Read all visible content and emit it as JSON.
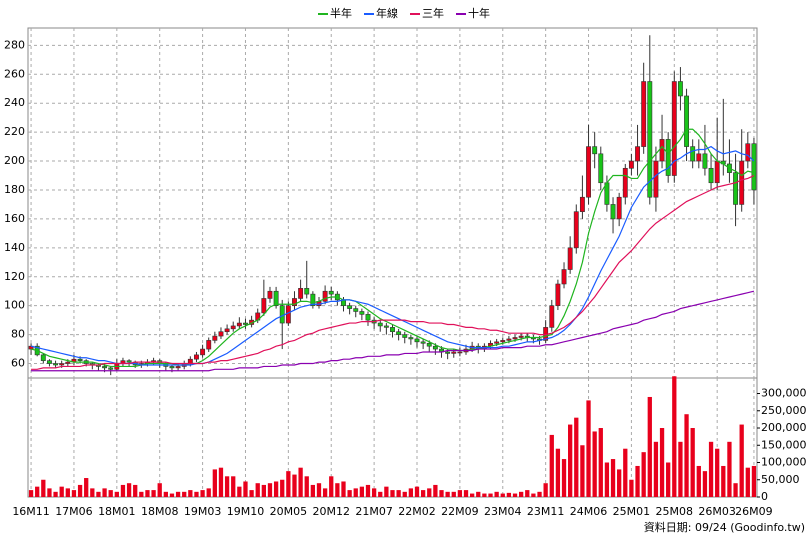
{
  "chart_data": {
    "type": "candlestick",
    "categories": [
      "16M11",
      null,
      null,
      null,
      null,
      null,
      null,
      "17M06",
      null,
      null,
      null,
      null,
      null,
      null,
      "18M01",
      null,
      null,
      null,
      null,
      null,
      null,
      "18M08",
      null,
      null,
      null,
      null,
      null,
      null,
      "19M03",
      null,
      null,
      null,
      null,
      null,
      null,
      "19M10",
      null,
      null,
      null,
      null,
      null,
      null,
      "20M05",
      null,
      null,
      null,
      null,
      null,
      null,
      "20M12",
      null,
      null,
      null,
      null,
      null,
      null,
      "21M07",
      null,
      null,
      null,
      null,
      null,
      null,
      "22M02",
      null,
      null,
      null,
      null,
      null,
      null,
      "22M09",
      null,
      null,
      null,
      null,
      null,
      null,
      "23M04",
      null,
      null,
      null,
      null,
      null,
      null,
      "23M11",
      null,
      null,
      null,
      null,
      null,
      null,
      "24M06",
      null,
      null,
      null,
      null,
      null,
      null,
      "25M01",
      null,
      null,
      null,
      null,
      null,
      null,
      "25M08",
      null,
      null,
      null,
      null,
      null,
      null,
      "26M03",
      null,
      null,
      null,
      null,
      null,
      "26M09"
    ],
    "open": [
      70,
      72,
      66,
      62,
      60,
      59,
      60,
      61,
      63,
      62,
      60,
      59,
      58,
      57,
      56,
      60,
      62,
      61,
      59,
      60,
      61,
      62,
      60,
      58,
      57,
      58,
      60,
      63,
      66,
      70,
      76,
      79,
      82,
      84,
      86,
      88,
      87,
      90,
      95,
      105,
      110,
      100,
      88,
      100,
      105,
      112,
      108,
      100,
      103,
      110,
      108,
      104,
      100,
      98,
      96,
      94,
      90,
      88,
      86,
      85,
      82,
      80,
      78,
      77,
      75,
      74,
      72,
      70,
      68,
      67,
      68,
      68,
      70,
      72,
      70,
      72,
      74,
      75,
      76,
      77,
      78,
      79,
      78,
      77,
      76,
      85,
      100,
      115,
      125,
      140,
      165,
      175,
      210,
      205,
      185,
      170,
      160,
      175,
      195,
      200,
      210,
      255,
      175,
      200,
      215,
      190,
      255,
      245,
      210,
      200,
      205,
      195,
      185,
      200,
      198,
      192,
      170,
      200,
      212
    ],
    "high": [
      74,
      74,
      67,
      63,
      62,
      62,
      63,
      66,
      65,
      63,
      61,
      60,
      60,
      58,
      63,
      64,
      63,
      62,
      62,
      63,
      64,
      63,
      61,
      59,
      60,
      62,
      65,
      68,
      73,
      78,
      82,
      85,
      87,
      89,
      92,
      91,
      93,
      98,
      118,
      113,
      113,
      104,
      103,
      110,
      118,
      131,
      110,
      106,
      114,
      113,
      110,
      106,
      102,
      100,
      98,
      96,
      92,
      90,
      88,
      87,
      84,
      82,
      80,
      79,
      77,
      76,
      74,
      72,
      70,
      70,
      71,
      73,
      75,
      74,
      74,
      76,
      77,
      78,
      79,
      80,
      81,
      81,
      80,
      79,
      90,
      104,
      118,
      130,
      148,
      170,
      190,
      225,
      220,
      210,
      190,
      175,
      178,
      198,
      205,
      225,
      268,
      287,
      210,
      232,
      220,
      262,
      265,
      250,
      215,
      215,
      225,
      205,
      230,
      243,
      215,
      205,
      222,
      220,
      216
    ],
    "low": [
      66,
      65,
      60,
      58,
      57,
      57,
      58,
      59,
      60,
      58,
      56,
      55,
      54,
      52,
      55,
      58,
      58,
      57,
      57,
      58,
      59,
      57,
      55,
      54,
      55,
      56,
      58,
      61,
      64,
      68,
      74,
      77,
      80,
      82,
      84,
      84,
      85,
      88,
      93,
      102,
      98,
      70,
      86,
      97,
      103,
      105,
      98,
      98,
      101,
      104,
      100,
      96,
      94,
      92,
      90,
      86,
      84,
      82,
      80,
      78,
      76,
      74,
      73,
      71,
      70,
      68,
      66,
      64,
      63,
      64,
      65,
      66,
      68,
      67,
      68,
      70,
      72,
      73,
      74,
      75,
      76,
      75,
      74,
      73,
      74,
      82,
      97,
      112,
      122,
      136,
      160,
      170,
      195,
      180,
      165,
      150,
      155,
      170,
      190,
      190,
      205,
      170,
      165,
      195,
      185,
      185,
      235,
      200,
      195,
      195,
      190,
      180,
      180,
      190,
      185,
      155,
      165,
      195,
      170
    ],
    "close": [
      72,
      66,
      62,
      60,
      59,
      60,
      61,
      63,
      62,
      60,
      59,
      58,
      57,
      56,
      60,
      62,
      61,
      59,
      60,
      61,
      62,
      60,
      58,
      57,
      58,
      60,
      63,
      66,
      70,
      76,
      79,
      82,
      84,
      86,
      88,
      87,
      90,
      95,
      105,
      110,
      100,
      88,
      100,
      105,
      112,
      108,
      100,
      103,
      110,
      108,
      104,
      100,
      98,
      96,
      94,
      90,
      88,
      86,
      85,
      82,
      80,
      78,
      77,
      75,
      74,
      72,
      70,
      68,
      67,
      68,
      68,
      70,
      72,
      70,
      72,
      74,
      75,
      76,
      77,
      78,
      79,
      78,
      77,
      76,
      85,
      100,
      115,
      125,
      140,
      165,
      175,
      210,
      205,
      185,
      170,
      160,
      175,
      195,
      200,
      210,
      255,
      175,
      200,
      215,
      190,
      255,
      245,
      210,
      200,
      205,
      195,
      185,
      200,
      198,
      192,
      170,
      200,
      212,
      180
    ],
    "up_color": "#e8001c",
    "down_color": "#19c419",
    "series": [
      {
        "name": "半年",
        "color": "#1fb51f",
        "values": [
          70,
          69,
          67,
          65,
          64,
          63,
          62,
          61,
          61,
          61,
          61,
          60,
          59,
          58,
          58,
          58,
          58,
          58,
          59,
          60,
          60,
          60,
          60,
          60,
          59,
          59,
          60,
          60,
          62,
          65,
          69,
          73,
          77,
          81,
          84,
          86,
          88,
          90,
          94,
          99,
          101,
          101,
          101,
          101,
          103,
          103,
          102,
          103,
          105,
          106,
          106,
          104,
          104,
          103,
          100,
          97,
          94,
          91,
          89,
          87,
          85,
          83,
          81,
          79,
          77,
          75,
          73,
          71,
          70,
          70,
          69,
          69,
          70,
          70,
          71,
          72,
          73,
          74,
          75,
          76,
          77,
          78,
          78,
          78,
          79,
          80,
          85,
          93,
          103,
          115,
          130,
          150,
          165,
          178,
          185,
          190,
          190,
          190,
          188,
          188,
          195,
          200,
          205,
          210,
          205,
          210,
          215,
          222,
          222,
          218,
          212,
          205,
          200,
          198,
          195,
          193,
          190,
          193,
          192
        ]
      },
      {
        "name": "年線",
        "color": "#1a5cff",
        "values": [
          72,
          71,
          70,
          69,
          68,
          67,
          66,
          65,
          64,
          64,
          63,
          62,
          62,
          61,
          60,
          60,
          60,
          60,
          59,
          59,
          59,
          59,
          59,
          59,
          59,
          59,
          59,
          60,
          60,
          61,
          63,
          65,
          67,
          70,
          73,
          76,
          79,
          82,
          85,
          88,
          91,
          93,
          95,
          97,
          99,
          100,
          101,
          101,
          102,
          103,
          103,
          104,
          104,
          103,
          102,
          101,
          99,
          97,
          95,
          93,
          91,
          89,
          87,
          85,
          83,
          81,
          79,
          77,
          75,
          74,
          73,
          72,
          71,
          71,
          71,
          71,
          71,
          72,
          72,
          73,
          74,
          75,
          75,
          76,
          77,
          78,
          80,
          83,
          87,
          92,
          98,
          106,
          115,
          124,
          132,
          140,
          148,
          158,
          168,
          175,
          182,
          186,
          190,
          193,
          195,
          200,
          202,
          205,
          207,
          208,
          208,
          210,
          207,
          205,
          206,
          207,
          205,
          204,
          200
        ]
      },
      {
        "name": "三年",
        "color": "#e0105a",
        "values": [
          56,
          56,
          57,
          57,
          57,
          58,
          58,
          58,
          58,
          59,
          59,
          59,
          60,
          60,
          60,
          60,
          60,
          61,
          61,
          61,
          61,
          61,
          61,
          60,
          60,
          60,
          60,
          60,
          60,
          61,
          61,
          62,
          62,
          63,
          64,
          65,
          66,
          67,
          69,
          70,
          72,
          73,
          75,
          76,
          78,
          80,
          81,
          83,
          84,
          85,
          86,
          87,
          88,
          88,
          89,
          89,
          89,
          90,
          90,
          90,
          90,
          90,
          89,
          89,
          89,
          88,
          88,
          88,
          87,
          87,
          86,
          85,
          85,
          84,
          84,
          83,
          83,
          82,
          81,
          81,
          81,
          81,
          81,
          80,
          80,
          81,
          83,
          85,
          88,
          92,
          96,
          101,
          106,
          112,
          118,
          124,
          130,
          134,
          138,
          143,
          148,
          153,
          157,
          160,
          163,
          166,
          169,
          172,
          174,
          176,
          178,
          180,
          182,
          183,
          184,
          185,
          187,
          188,
          190
        ]
      },
      {
        "name": "十年",
        "color": "#8a00b0",
        "values": [
          55,
          55,
          55,
          55,
          55,
          55,
          55,
          55,
          55,
          55,
          55,
          55,
          55,
          55,
          55,
          55,
          55,
          55,
          55,
          55,
          55,
          55,
          55,
          55,
          55,
          55,
          55,
          55,
          55,
          55,
          56,
          56,
          56,
          56,
          57,
          57,
          57,
          57,
          58,
          58,
          58,
          59,
          59,
          59,
          60,
          60,
          60,
          61,
          61,
          62,
          62,
          63,
          63,
          64,
          64,
          65,
          65,
          65,
          66,
          66,
          66,
          67,
          67,
          67,
          68,
          68,
          68,
          68,
          69,
          69,
          69,
          69,
          69,
          70,
          70,
          70,
          70,
          71,
          71,
          71,
          71,
          72,
          72,
          72,
          73,
          73,
          74,
          75,
          76,
          77,
          78,
          79,
          80,
          81,
          82,
          84,
          85,
          86,
          87,
          88,
          90,
          91,
          92,
          94,
          95,
          96,
          98,
          99,
          100,
          101,
          102,
          103,
          104,
          105,
          106,
          107,
          108,
          109,
          110
        ]
      }
    ],
    "volume": {
      "color": "#e8001c",
      "axis": "y2",
      "values": [
        20000,
        30000,
        50000,
        25000,
        15000,
        30000,
        25000,
        20000,
        35000,
        55000,
        25000,
        15000,
        25000,
        20000,
        15000,
        35000,
        40000,
        35000,
        15000,
        20000,
        20000,
        40000,
        15000,
        10000,
        15000,
        15000,
        20000,
        15000,
        20000,
        25000,
        80000,
        85000,
        60000,
        60000,
        30000,
        45000,
        20000,
        40000,
        35000,
        40000,
        45000,
        50000,
        75000,
        65000,
        85000,
        60000,
        35000,
        40000,
        25000,
        60000,
        40000,
        45000,
        20000,
        25000,
        30000,
        35000,
        25000,
        15000,
        30000,
        20000,
        20000,
        15000,
        25000,
        30000,
        20000,
        25000,
        35000,
        20000,
        15000,
        15000,
        20000,
        20000,
        10000,
        15000,
        10000,
        10000,
        15000,
        10000,
        12000,
        10000,
        15000,
        20000,
        10000,
        15000,
        40000,
        180000,
        140000,
        110000,
        210000,
        230000,
        150000,
        280000,
        190000,
        200000,
        100000,
        110000,
        80000,
        140000,
        50000,
        90000,
        130000,
        290000,
        160000,
        200000,
        100000,
        350000,
        160000,
        240000,
        200000,
        90000,
        75000,
        160000,
        140000,
        90000,
        160000,
        40000,
        210000,
        85000,
        90000
      ]
    },
    "ylim": [
      50,
      292
    ],
    "yticks": [
      60,
      80,
      100,
      120,
      140,
      160,
      180,
      200,
      220,
      240,
      260,
      280
    ],
    "y2lim": [
      0,
      345000
    ],
    "y2ticks": [
      0,
      {
        "value": 50000,
        "label": "50,000"
      },
      {
        "value": 100000,
        "label": "100,000"
      },
      {
        "value": 150000,
        "label": "150,000"
      },
      {
        "value": 200000,
        "label": "200,000"
      },
      {
        "value": 250000,
        "label": "250,000"
      },
      {
        "value": 300000,
        "label": "300,000"
      }
    ],
    "grid": true,
    "legend": "top",
    "source": "資料日期: 09/24  (Goodinfo.tw)"
  }
}
